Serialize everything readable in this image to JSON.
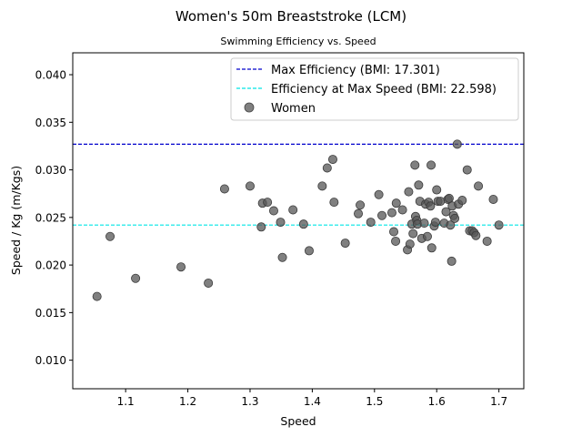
{
  "chart_data": {
    "type": "scatter",
    "title": "Women's 50m Breaststroke (LCM)",
    "subtitle": "Swimming Efficiency vs. Speed",
    "xlabel": "Speed",
    "ylabel": "Speed / Kg (m/Kgs)",
    "xlim": [
      1.015,
      1.74
    ],
    "ylim": [
      0.007,
      0.0423
    ],
    "xticks": [
      1.1,
      1.2,
      1.3,
      1.4,
      1.5,
      1.6,
      1.7
    ],
    "xtick_labels": [
      "1.1",
      "1.2",
      "1.3",
      "1.4",
      "1.5",
      "1.6",
      "1.7"
    ],
    "yticks": [
      0.01,
      0.015,
      0.02,
      0.025,
      0.03,
      0.035,
      0.04
    ],
    "ytick_labels": [
      "0.010",
      "0.015",
      "0.020",
      "0.025",
      "0.030",
      "0.035",
      "0.040"
    ],
    "grid": false,
    "legend_position": "top-right",
    "hlines": [
      {
        "label": "Max Efficiency (BMI: 17.301)",
        "y": 0.0327,
        "color": "#0000cc",
        "style": "dashed"
      },
      {
        "label": "Efficiency at Max Speed (BMI: 22.598)",
        "y": 0.0242,
        "color": "#00e5e5",
        "style": "dashed"
      }
    ],
    "series": [
      {
        "name": "Women",
        "color": "#555555",
        "points": [
          [
            1.054,
            0.0167
          ],
          [
            1.075,
            0.023
          ],
          [
            1.116,
            0.0186
          ],
          [
            1.189,
            0.0198
          ],
          [
            1.233,
            0.0181
          ],
          [
            1.259,
            0.028
          ],
          [
            1.3,
            0.0283
          ],
          [
            1.318,
            0.024
          ],
          [
            1.32,
            0.0265
          ],
          [
            1.328,
            0.0266
          ],
          [
            1.338,
            0.0257
          ],
          [
            1.349,
            0.0245
          ],
          [
            1.352,
            0.0208
          ],
          [
            1.369,
            0.0258
          ],
          [
            1.386,
            0.0243
          ],
          [
            1.395,
            0.0215
          ],
          [
            1.416,
            0.0283
          ],
          [
            1.424,
            0.0302
          ],
          [
            1.433,
            0.0311
          ],
          [
            1.435,
            0.0266
          ],
          [
            1.453,
            0.0223
          ],
          [
            1.474,
            0.0254
          ],
          [
            1.477,
            0.0263
          ],
          [
            1.494,
            0.0245
          ],
          [
            1.507,
            0.0274
          ],
          [
            1.512,
            0.0252
          ],
          [
            1.528,
            0.0255
          ],
          [
            1.531,
            0.0235
          ],
          [
            1.534,
            0.0225
          ],
          [
            1.535,
            0.0265
          ],
          [
            1.545,
            0.0258
          ],
          [
            1.553,
            0.0216
          ],
          [
            1.555,
            0.0277
          ],
          [
            1.557,
            0.0222
          ],
          [
            1.56,
            0.0243
          ],
          [
            1.562,
            0.0233
          ],
          [
            1.565,
            0.0305
          ],
          [
            1.566,
            0.0251
          ],
          [
            1.568,
            0.0247
          ],
          [
            1.569,
            0.0243
          ],
          [
            1.571,
            0.0284
          ],
          [
            1.573,
            0.0267
          ],
          [
            1.576,
            0.0228
          ],
          [
            1.58,
            0.0244
          ],
          [
            1.582,
            0.0264
          ],
          [
            1.585,
            0.023
          ],
          [
            1.587,
            0.0266
          ],
          [
            1.59,
            0.0262
          ],
          [
            1.591,
            0.0305
          ],
          [
            1.592,
            0.0218
          ],
          [
            1.596,
            0.0241
          ],
          [
            1.598,
            0.0245
          ],
          [
            1.6,
            0.0279
          ],
          [
            1.602,
            0.0267
          ],
          [
            1.606,
            0.0267
          ],
          [
            1.612,
            0.0244
          ],
          [
            1.615,
            0.0256
          ],
          [
            1.618,
            0.0269
          ],
          [
            1.62,
            0.027
          ],
          [
            1.622,
            0.0242
          ],
          [
            1.624,
            0.0204
          ],
          [
            1.625,
            0.0262
          ],
          [
            1.627,
            0.0252
          ],
          [
            1.629,
            0.0249
          ],
          [
            1.633,
            0.0327
          ],
          [
            1.635,
            0.0264
          ],
          [
            1.641,
            0.0268
          ],
          [
            1.649,
            0.03
          ],
          [
            1.653,
            0.0236
          ],
          [
            1.657,
            0.0236
          ],
          [
            1.66,
            0.0234
          ],
          [
            1.663,
            0.0231
          ],
          [
            1.667,
            0.0283
          ],
          [
            1.681,
            0.0225
          ],
          [
            1.691,
            0.0269
          ],
          [
            1.7,
            0.0242
          ]
        ]
      }
    ]
  }
}
